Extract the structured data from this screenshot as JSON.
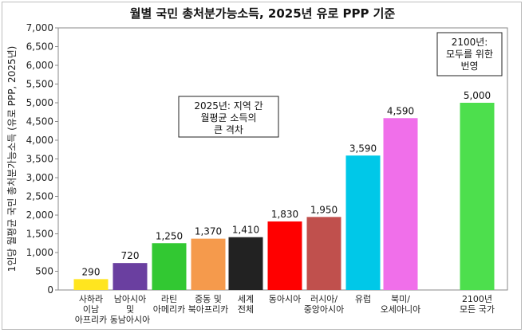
{
  "chart_data": {
    "type": "bar",
    "title": "월별 국민 총처분가능소득, 2025년 유로 PPP 기준",
    "ylabel": "1인당 월평균 국민 총처분가능소득 (유로 PPP, 2025년)",
    "xlabel": "",
    "ylim": [
      0,
      7000
    ],
    "yticks": [
      0,
      500,
      1000,
      1500,
      2000,
      2500,
      3000,
      3500,
      4000,
      4500,
      5000,
      5500,
      6000,
      6500,
      7000
    ],
    "ytick_labels": [
      "0",
      "500",
      "1,000",
      "1,500",
      "2,000",
      "2,500",
      "3,000",
      "3,500",
      "4,000",
      "4,500",
      "5,000",
      "5,500",
      "6,000",
      "6,500",
      "7,000"
    ],
    "grid": false,
    "legend": "none",
    "categories": [
      [
        "사하라",
        "이남",
        "아프리카"
      ],
      [
        "남아시아",
        "및",
        "동남아시아"
      ],
      [
        "라틴",
        "아메리카"
      ],
      [
        "중동 및",
        "북아프리카"
      ],
      [
        "세계",
        "전체"
      ],
      [
        "동아시아"
      ],
      [
        "러시아/",
        "중앙아시아"
      ],
      [
        "유럽"
      ],
      [
        "북미/",
        "오세아니아"
      ],
      [
        "2100년",
        "모든 국가"
      ]
    ],
    "values": [
      290,
      720,
      1250,
      1370,
      1410,
      1830,
      1950,
      3590,
      4590,
      5000
    ],
    "value_labels": [
      "290",
      "720",
      "1,250",
      "1,370",
      "1,410",
      "1,830",
      "1,950",
      "3,590",
      "4,590",
      "5,000"
    ],
    "colors": [
      "#ffe51f",
      "#6a3fa0",
      "#32c832",
      "#f59a4c",
      "#222222",
      "#ff0000",
      "#c0504d",
      "#00c8e8",
      "#f06fea",
      "#4ddf4d"
    ],
    "annotations": [
      {
        "lines": [
          "2025년: 지역 간",
          "월평균 소득의",
          "큰 격차"
        ]
      },
      {
        "lines": [
          "2100년:",
          "모두를 위한",
          "번영"
        ]
      }
    ]
  }
}
